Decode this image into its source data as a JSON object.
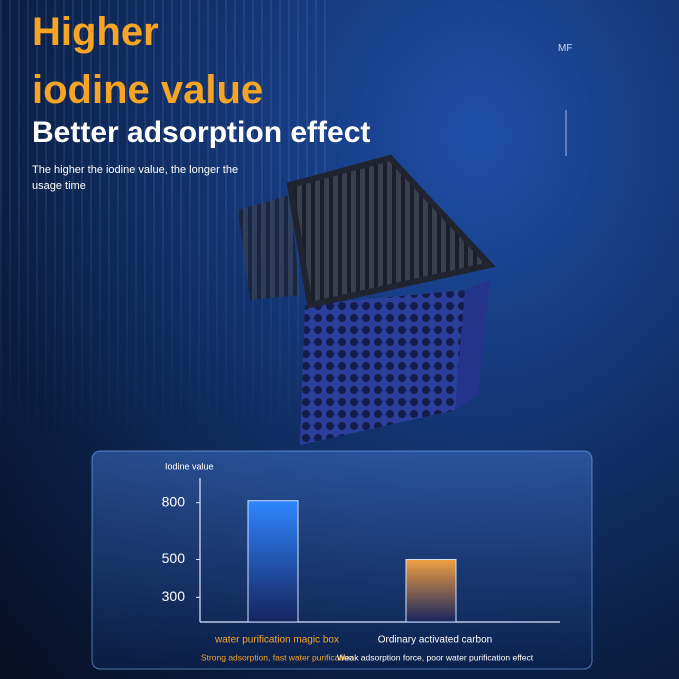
{
  "header": {
    "title_lines": [
      "Higher",
      "iodine value"
    ],
    "subtitle": "Better adsorption effect",
    "description": "The higher the iodine value, the longer the usage time",
    "mark": "MF"
  },
  "chart_data": {
    "type": "bar",
    "y_label": "Iodine value",
    "categories": [
      "water purification magic box",
      "Ordinary activated carbon"
    ],
    "category_notes": [
      "Strong adsorption, fast water purification",
      "Weak adsorption force, poor water purification effect"
    ],
    "values": [
      810,
      500
    ],
    "colors": [
      "#2e86ff",
      "#f0a040"
    ],
    "ylim": [
      170,
      930
    ],
    "yticks": [
      300,
      500,
      800
    ],
    "grid": false
  }
}
